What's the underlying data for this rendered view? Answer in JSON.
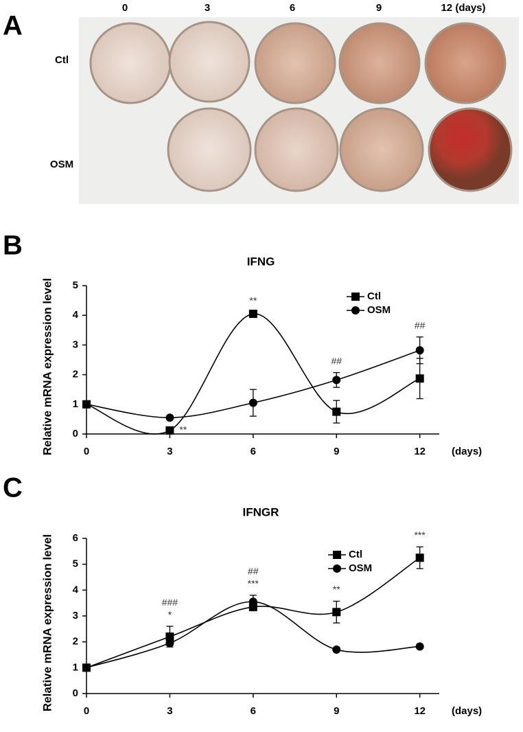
{
  "panel_a": {
    "letter": "A",
    "columns": [
      "0",
      "3",
      "6",
      "9",
      "12 (days)"
    ],
    "rows": [
      "Ctl",
      "OSM"
    ]
  },
  "chart_data": [
    {
      "type": "line",
      "letter": "B",
      "title": "IFNG",
      "y_label": "Relative mRNA expression level",
      "x_label": "(days)",
      "x": [
        0,
        3,
        6,
        9,
        12
      ],
      "xlim": [
        0,
        12.7
      ],
      "xticks": [
        0,
        3,
        6,
        9,
        12
      ],
      "ylim": [
        0,
        5
      ],
      "yticks": [
        0,
        1,
        2,
        3,
        4,
        5
      ],
      "legend": "upper right",
      "smooth": true,
      "series": [
        {
          "name": "Ctl",
          "color": "#000000",
          "marker": "square",
          "values": [
            1.0,
            0.12,
            4.05,
            0.75,
            1.87
          ],
          "errors": [
            0,
            0.05,
            0.05,
            0.38,
            0.68
          ]
        },
        {
          "name": "OSM",
          "color": "#000000",
          "marker": "circle",
          "values": [
            1.0,
            0.55,
            1.05,
            1.82,
            2.82
          ],
          "errors": [
            0,
            0.03,
            0.45,
            0.25,
            0.45
          ]
        }
      ],
      "annotations": [
        "**",
        "**",
        "##",
        "##"
      ]
    },
    {
      "type": "line",
      "letter": "C",
      "title": "IFNGR",
      "y_label": "Relative mRNA expression level",
      "x_label": "(days)",
      "x": [
        0,
        3,
        6,
        9,
        12
      ],
      "xlim": [
        0,
        12.7
      ],
      "xticks": [
        0,
        3,
        6,
        9,
        12
      ],
      "ylim": [
        0,
        6
      ],
      "yticks": [
        0,
        1,
        2,
        3,
        4,
        5,
        6
      ],
      "legend": "upper right",
      "smooth": true,
      "series": [
        {
          "name": "Ctl",
          "color": "#000000",
          "marker": "square",
          "values": [
            1.0,
            2.2,
            3.35,
            3.15,
            5.25
          ],
          "errors": [
            0.1,
            0.4,
            0.15,
            0.42,
            0.42
          ]
        },
        {
          "name": "OSM",
          "color": "#000000",
          "marker": "circle",
          "values": [
            1.0,
            1.95,
            3.55,
            1.7,
            1.82
          ],
          "errors": [
            0.05,
            0.1,
            0.25,
            0.05,
            0.05
          ]
        }
      ],
      "annotations": [
        "###",
        "*",
        "##",
        "***",
        "**",
        "***"
      ]
    }
  ]
}
